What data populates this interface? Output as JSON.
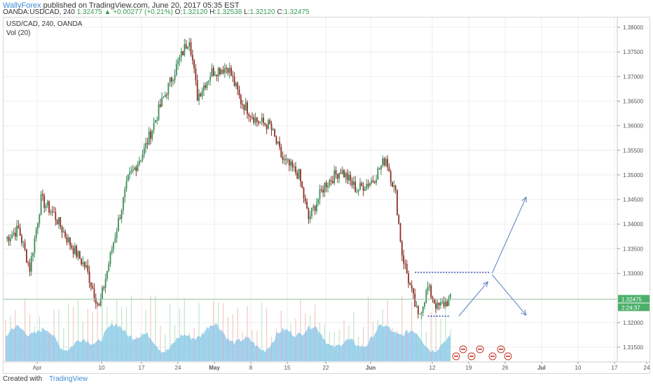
{
  "header": {
    "author": "WallyForex",
    "published": "published on TradingView.com, June 20, 2017 05:35 EST",
    "symbol": "OANDA:USDCAD, 240",
    "last": "1.32475",
    "change": "+0.00277 (+0.21%)",
    "o_label": "O:",
    "o": "1.32120",
    "h_label": "H:",
    "h": "1.32538",
    "l_label": "L:",
    "l": "1.32120",
    "c_label": "C:",
    "c": "1.32475"
  },
  "legend": {
    "symbol": "USD/CAD, 240, OANDA",
    "volume": "Vol (20)"
  },
  "footer": {
    "created": "Created with",
    "brand": "TradingView"
  },
  "colors": {
    "up": "#3d8b5a",
    "down": "#8b2f25",
    "volume_area": "#7fc4ec",
    "arrow": "#5a7cc0",
    "grid": "#eeeeee"
  },
  "chart_data": {
    "type": "candlestick",
    "ylim": [
      1.312,
      1.382
    ],
    "y_ticks": [
      "1.38000",
      "1.37500",
      "1.37000",
      "1.36500",
      "1.36000",
      "1.35500",
      "1.35000",
      "1.34500",
      "1.34000",
      "1.33500",
      "1.33000",
      "1.32000",
      "1.31500"
    ],
    "y_tick_values": [
      1.38,
      1.375,
      1.37,
      1.365,
      1.36,
      1.355,
      1.35,
      1.345,
      1.34,
      1.335,
      1.33,
      1.32,
      1.315
    ],
    "x_ticks": [
      "Apr",
      "10",
      "17",
      "24",
      "May",
      "8",
      "15",
      "22",
      "Jun",
      "12",
      "19",
      "26",
      "Jul",
      "10",
      "17",
      "24"
    ],
    "current_price_label": "1.32475",
    "countdown_label": "2:24:37",
    "current_price": 1.32475,
    "resistance_level": 1.3302,
    "support_level": 1.3213,
    "path_keypoints": [
      {
        "i": 0,
        "p": 1.337
      },
      {
        "i": 8,
        "p": 1.339
      },
      {
        "i": 15,
        "p": 1.331
      },
      {
        "i": 22,
        "p": 1.345
      },
      {
        "i": 30,
        "p": 1.342
      },
      {
        "i": 40,
        "p": 1.336
      },
      {
        "i": 50,
        "p": 1.331
      },
      {
        "i": 58,
        "p": 1.323
      },
      {
        "i": 66,
        "p": 1.335
      },
      {
        "i": 76,
        "p": 1.349
      },
      {
        "i": 86,
        "p": 1.355
      },
      {
        "i": 96,
        "p": 1.364
      },
      {
        "i": 106,
        "p": 1.372
      },
      {
        "i": 114,
        "p": 1.378
      },
      {
        "i": 119,
        "p": 1.366
      },
      {
        "i": 128,
        "p": 1.371
      },
      {
        "i": 138,
        "p": 1.372
      },
      {
        "i": 146,
        "p": 1.365
      },
      {
        "i": 156,
        "p": 1.361
      },
      {
        "i": 164,
        "p": 1.36
      },
      {
        "i": 172,
        "p": 1.353
      },
      {
        "i": 182,
        "p": 1.35
      },
      {
        "i": 188,
        "p": 1.341
      },
      {
        "i": 198,
        "p": 1.348
      },
      {
        "i": 208,
        "p": 1.351
      },
      {
        "i": 218,
        "p": 1.347
      },
      {
        "i": 228,
        "p": 1.349
      },
      {
        "i": 236,
        "p": 1.3535
      },
      {
        "i": 242,
        "p": 1.346
      },
      {
        "i": 246,
        "p": 1.334
      },
      {
        "i": 252,
        "p": 1.326
      },
      {
        "i": 256,
        "p": 1.321
      },
      {
        "i": 262,
        "p": 1.327
      },
      {
        "i": 268,
        "p": 1.323
      },
      {
        "i": 276,
        "p": 1.3247
      }
    ],
    "forecast_paths": [
      [
        {
          "i": 276,
          "p": 1.3213
        },
        {
          "i": 301,
          "p": 1.33
        },
        {
          "i": 323,
          "p": 1.3455
        }
      ],
      [
        {
          "i": 301,
          "p": 1.33
        },
        {
          "i": 323,
          "p": 1.3215
        }
      ]
    ]
  }
}
